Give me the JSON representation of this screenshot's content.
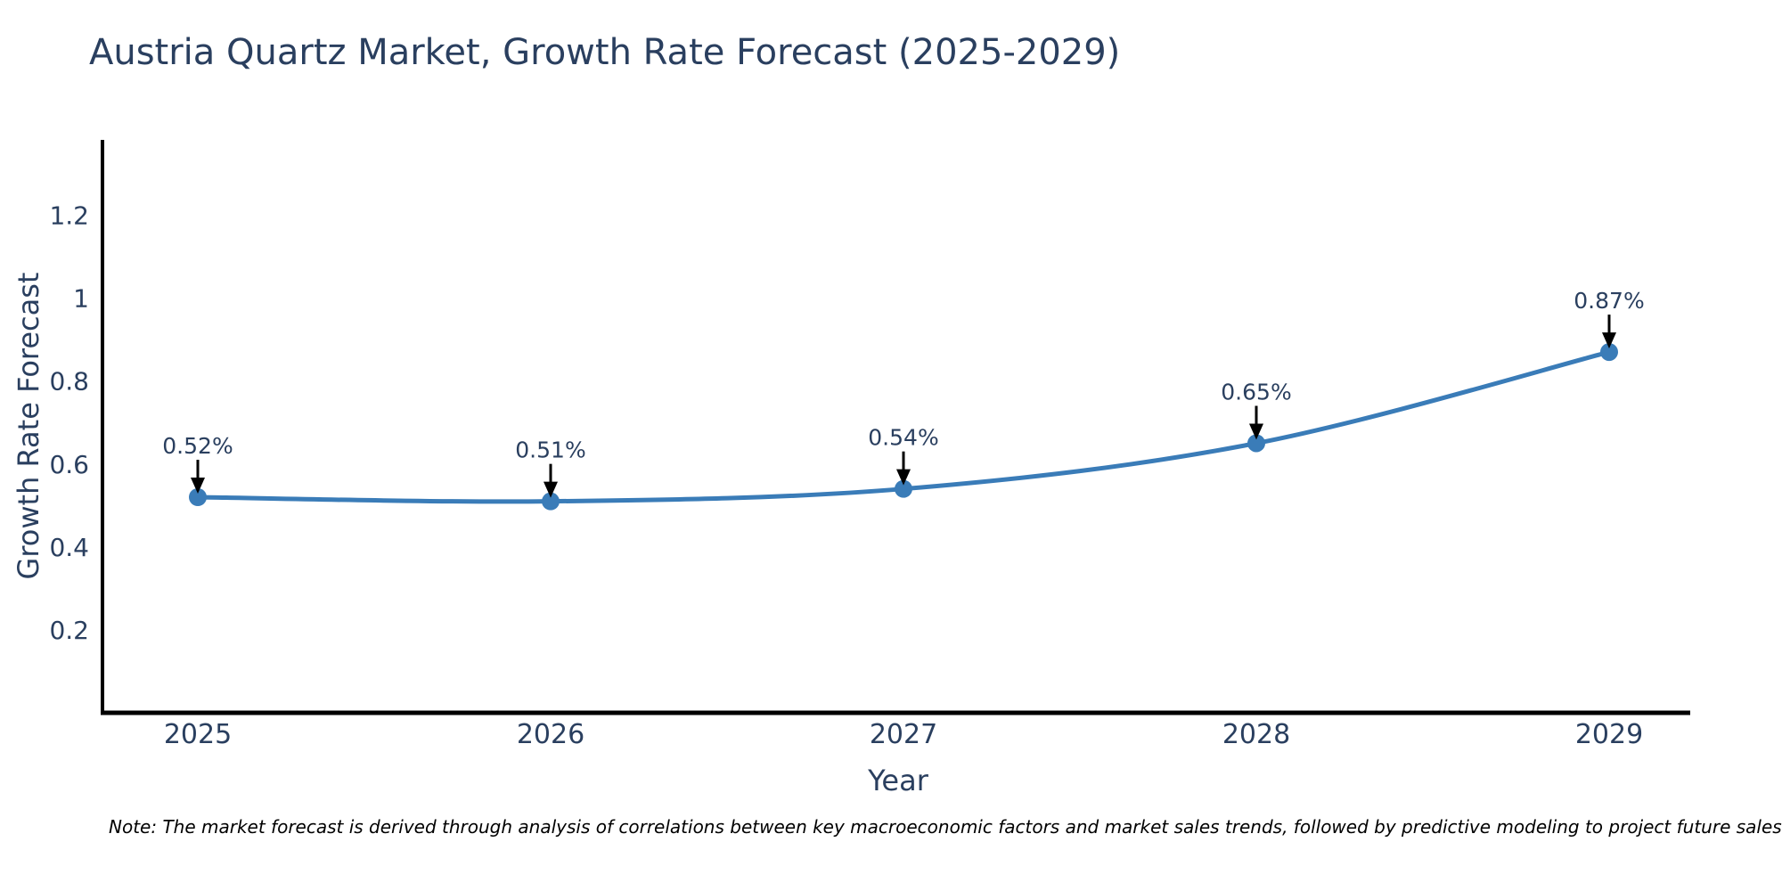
{
  "title": {
    "text": "Austria Quartz Market, Growth Rate Forecast (2025-2029)",
    "color": "#2a3f5f"
  },
  "note": {
    "text": "Note: The market forecast is derived through analysis of correlations between key macroeconomic factors and market sales trends, followed by predictive modeling to project future sales"
  },
  "chart_data": {
    "type": "line",
    "title": "Austria Quartz Market, Growth Rate Forecast (2025-2029)",
    "xlabel": "Year",
    "ylabel": "Growth Rate Forecast",
    "x": [
      "2025",
      "2026",
      "2027",
      "2028",
      "2029"
    ],
    "series": [
      {
        "name": "Growth Rate Forecast",
        "values": [
          0.52,
          0.51,
          0.54,
          0.65,
          0.87
        ]
      }
    ],
    "point_labels": [
      "0.52%",
      "0.51%",
      "0.54%",
      "0.65%",
      "0.87%"
    ],
    "yticks": [
      0.2,
      0.4,
      0.6,
      0.8,
      1,
      1.2
    ],
    "ytick_labels": [
      "0.2",
      "0.4",
      "0.6",
      "0.8",
      "1",
      "1.2"
    ],
    "ylim": [
      0,
      1.38
    ],
    "line_shape": "spline",
    "grid": false,
    "legend_position": "none",
    "colors": {
      "line": "#3a7cb8",
      "marker": "#3a7cb8",
      "axis": "#000000",
      "tick_label": "#2a3f5f",
      "annotation_text": "#2a3f5f",
      "annotation_arrow": "#000000"
    }
  }
}
